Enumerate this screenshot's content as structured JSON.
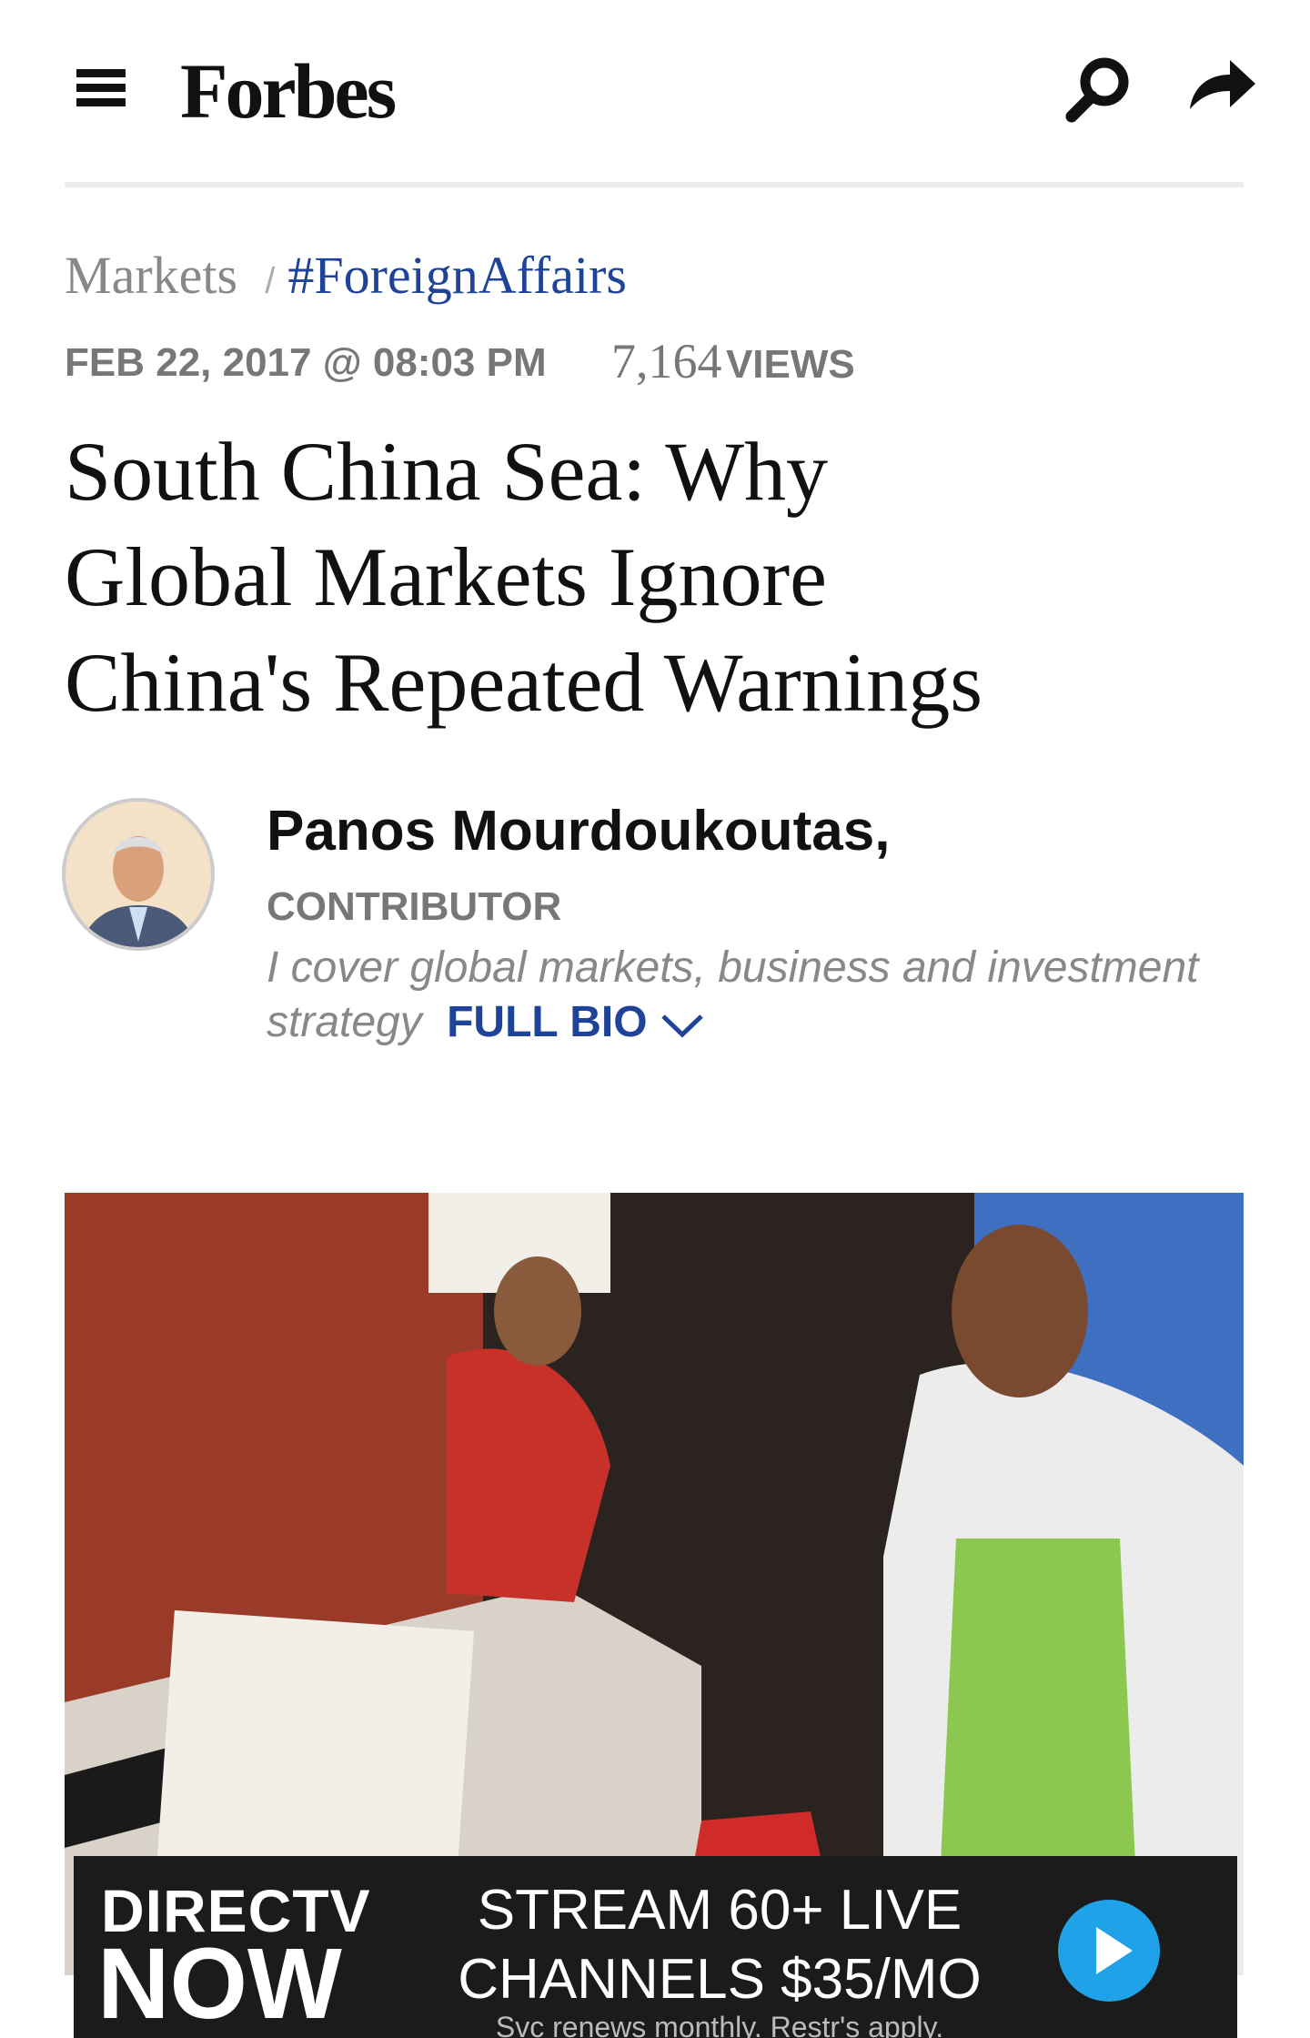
{
  "header": {
    "logo": "Forbes"
  },
  "breadcrumb": {
    "section": "Markets",
    "separator": "/",
    "tag": "#ForeignAffairs"
  },
  "meta": {
    "date": "FEB 22, 2017 @ 08:03 PM",
    "views_count": "7,164",
    "views_label": "VIEWS"
  },
  "article": {
    "title_lines": [
      "South China Sea: Why",
      "Global Markets Ignore",
      "China's Repeated Warnings"
    ]
  },
  "author": {
    "name": "Panos Mourdoukoutas,",
    "role": "CONTRIBUTOR",
    "bio": "I cover global markets, business and investment strategy",
    "bio_link": "FULL BIO"
  },
  "ad": {
    "brand_top": "DIRECTV",
    "brand_bottom": "NOW",
    "headline_lines": [
      "STREAM 60+ LIVE",
      "CHANNELS $35/MO"
    ],
    "note": "Svc renews monthly. Restr's apply."
  }
}
